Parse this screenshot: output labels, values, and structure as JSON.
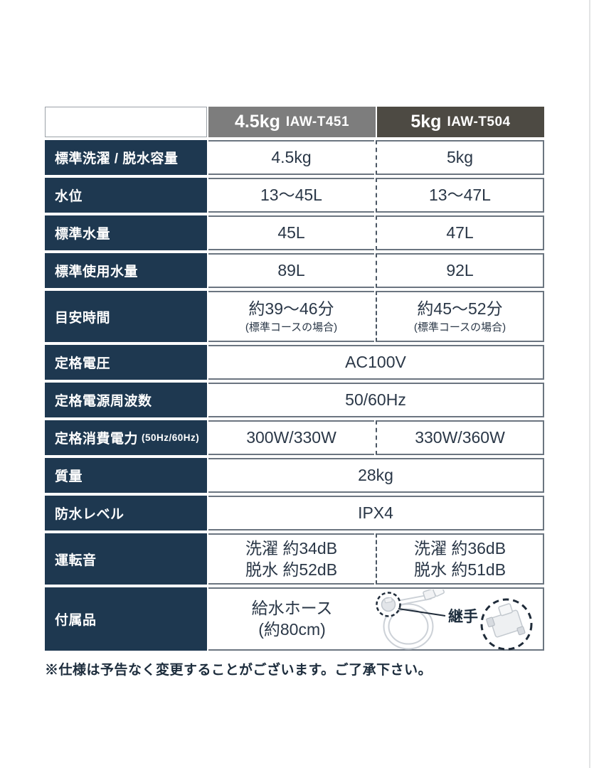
{
  "page": {
    "footnote": "※仕様は予告なく変更することがございます。ご了承下さい。"
  },
  "table": {
    "columns": [
      {
        "capacity": "4.5kg",
        "model": "IAW-T451"
      },
      {
        "capacity": "5kg",
        "model": "IAW-T504"
      }
    ],
    "rows": [
      {
        "label": "標準洗濯 / 脱水容量",
        "values": [
          "4.5kg",
          "5kg"
        ]
      },
      {
        "label": "水位",
        "values": [
          "13〜45L",
          "13〜47L"
        ]
      },
      {
        "label": "標準水量",
        "values": [
          "45L",
          "47L"
        ]
      },
      {
        "label": "標準使用水量",
        "values": [
          "89L",
          "92L"
        ]
      },
      {
        "label": "目安時間",
        "tall": true,
        "note_second": true,
        "values": [
          [
            "約39〜46分",
            "(標準コースの場合)"
          ],
          [
            "約45〜52分",
            "(標準コースの場合)"
          ]
        ]
      },
      {
        "label": "定格電圧",
        "span_value": "AC100V"
      },
      {
        "label": "定格電源周波数",
        "span_value": "50/60Hz"
      },
      {
        "label": "定格消費電力",
        "label_suffix": "(50Hz/60Hz)",
        "values": [
          "300W/330W",
          "330W/360W"
        ]
      },
      {
        "label": "質量",
        "span_value": "28kg"
      },
      {
        "label": "防水レベル",
        "span_value": "IPX4"
      },
      {
        "label": "運転音",
        "tall": true,
        "values": [
          [
            "洗濯 約34dB",
            "脱水 約52dB"
          ],
          [
            "洗濯 約36dB",
            "脱水 約51dB"
          ]
        ]
      }
    ],
    "accessory_row": {
      "label": "付属品",
      "item": "給水ホース",
      "item_note": "(約80cm)",
      "callout": "継手"
    }
  },
  "colors": {
    "label_navy": "#1e3850",
    "header_gray": "#7d7d7d",
    "header_dark": "#4d4a43",
    "cell_border": "#6b7580",
    "dashed_divider": "#4a5663",
    "value_text": "#2a3747",
    "footnote_text": "#1c2c3c",
    "hose_gray": "#ccd1d7"
  }
}
